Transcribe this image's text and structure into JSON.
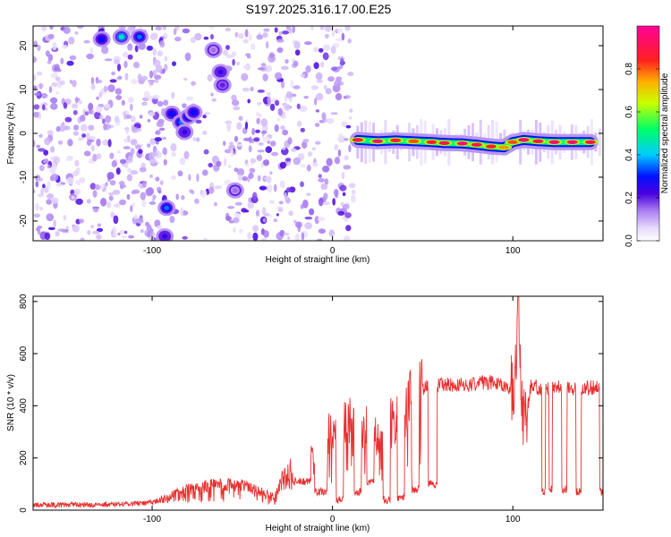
{
  "figure": {
    "title": "S197.2025.316.17.00.E25"
  },
  "colors": {
    "background": "#ffffff",
    "snr_line": "#e83030",
    "axis": "#000000",
    "colormap": [
      "#ffffff",
      "#e8dcfb",
      "#c9a8f5",
      "#8a3ff0",
      "#4a00e0",
      "#0000ff",
      "#00ccff",
      "#00ff80",
      "#ffff00",
      "#ff6a00",
      "#ff0033",
      "#ff0099"
    ]
  },
  "chart_data": [
    {
      "id": "spectrogram",
      "type": "heatmap",
      "title": "S197.2025.316.17.00.E25",
      "xlabel": "Height of straight line (km)",
      "ylabel": "Frequency (Hz)",
      "xlim": [
        -166,
        150
      ],
      "ylim": [
        -24.5,
        24.5
      ],
      "xticks": [
        -100,
        0,
        100
      ],
      "yticks": [
        -20,
        -10,
        0,
        10,
        20
      ],
      "colorbar": {
        "label": "Normalized spectral amplitude",
        "range": [
          0,
          1
        ],
        "ticks": [
          0.0,
          0.2,
          0.4,
          0.6,
          0.8
        ]
      },
      "noise_segments": [
        {
          "x0": -166,
          "x1": -92,
          "density": 0.9
        },
        {
          "x0": -89,
          "x1": -62,
          "density": 0.35
        },
        {
          "x0": -60,
          "x1": 12,
          "density": 0.75
        }
      ],
      "blobs": [
        {
          "x": -128,
          "y": 21.5,
          "amp": 0.3
        },
        {
          "x": -117,
          "y": 22.0,
          "amp": 0.45
        },
        {
          "x": -107,
          "y": 22.0,
          "amp": 0.35
        },
        {
          "x": -89,
          "y": 4.5,
          "amp": 0.3
        },
        {
          "x": -84,
          "y": 2.5,
          "amp": 0.35
        },
        {
          "x": -80,
          "y": 3.8,
          "amp": 0.3
        },
        {
          "x": -77,
          "y": 4.8,
          "amp": 0.3
        },
        {
          "x": -82,
          "y": 0.3,
          "amp": 0.25
        },
        {
          "x": -92,
          "y": -17.0,
          "amp": 0.35
        },
        {
          "x": -93,
          "y": -23.5,
          "amp": 0.25
        },
        {
          "x": -62,
          "y": 14.0,
          "amp": 0.25
        },
        {
          "x": -61,
          "y": 11.0,
          "amp": 0.2
        },
        {
          "x": -54,
          "y": -13.0,
          "amp": 0.15
        },
        {
          "x": -66,
          "y": 19.0,
          "amp": 0.15
        }
      ],
      "ridge": [
        {
          "x": 14,
          "y": -1.5,
          "amp": 0.95
        },
        {
          "x": 25,
          "y": -1.8,
          "amp": 1.0
        },
        {
          "x": 35,
          "y": -1.6,
          "amp": 0.9
        },
        {
          "x": 45,
          "y": -1.8,
          "amp": 0.85
        },
        {
          "x": 55,
          "y": -2.0,
          "amp": 0.9
        },
        {
          "x": 62,
          "y": -2.2,
          "amp": 0.95
        },
        {
          "x": 72,
          "y": -2.3,
          "amp": 1.0
        },
        {
          "x": 80,
          "y": -2.6,
          "amp": 0.95
        },
        {
          "x": 88,
          "y": -3.0,
          "amp": 0.9
        },
        {
          "x": 95,
          "y": -3.2,
          "amp": 0.8
        },
        {
          "x": 100,
          "y": -2.0,
          "amp": 0.85
        },
        {
          "x": 106,
          "y": -1.5,
          "amp": 1.0
        },
        {
          "x": 114,
          "y": -1.8,
          "amp": 0.95
        },
        {
          "x": 123,
          "y": -2.0,
          "amp": 1.0
        },
        {
          "x": 133,
          "y": -2.0,
          "amp": 1.0
        },
        {
          "x": 143,
          "y": -2.0,
          "amp": 0.95
        }
      ]
    },
    {
      "id": "snr",
      "type": "line",
      "xlabel": "Height of straight line (km)",
      "ylabel": "SNR (10 * v/v)",
      "xlim": [
        -166,
        150
      ],
      "ylim": [
        0,
        820
      ],
      "xticks": [
        -100,
        0,
        100
      ],
      "yticks": [
        0,
        200,
        400,
        600,
        800
      ],
      "series": [
        {
          "name": "SNR",
          "x": [
            -166,
            -150,
            -130,
            -110,
            -100,
            -92,
            -88,
            -84,
            -80,
            -76,
            -72,
            -68,
            -64,
            -60,
            -56,
            -52,
            -48,
            -44,
            -40,
            -36,
            -32,
            -28,
            -24,
            -20,
            -16,
            -12,
            -8,
            -4,
            0,
            4,
            8,
            12,
            16,
            20,
            24,
            28,
            32,
            36,
            40,
            44,
            48,
            52,
            56,
            60,
            64,
            70,
            76,
            82,
            88,
            94,
            98,
            100,
            102,
            103,
            104,
            105,
            106,
            108,
            110,
            114,
            118,
            122,
            126,
            130,
            134,
            138,
            142,
            146,
            150
          ],
          "y": [
            20,
            20,
            20,
            25,
            30,
            45,
            60,
            70,
            80,
            85,
            90,
            95,
            100,
            100,
            95,
            95,
            90,
            80,
            70,
            60,
            55,
            120,
            150,
            180,
            190,
            220,
            260,
            280,
            300,
            300,
            340,
            350,
            300,
            330,
            290,
            300,
            340,
            350,
            380,
            440,
            460,
            470,
            480,
            480,
            480,
            480,
            480,
            490,
            490,
            480,
            470,
            480,
            560,
            700,
            600,
            420,
            350,
            380,
            480,
            470,
            460,
            470,
            470,
            470,
            465,
            470,
            470,
            470,
            470
          ]
        }
      ],
      "dropouts": [
        [
          -22,
          -12,
          110
        ],
        [
          -10,
          -3,
          70
        ],
        [
          2,
          6,
          40
        ],
        [
          12,
          16,
          70
        ],
        [
          19,
          23,
          110
        ],
        [
          28,
          32,
          40
        ],
        [
          36,
          40,
          50
        ],
        [
          44,
          48,
          80
        ],
        [
          53,
          58,
          100
        ],
        [
          116,
          118,
          70
        ],
        [
          120,
          122,
          80
        ],
        [
          127,
          130,
          80
        ],
        [
          135,
          138,
          70
        ],
        [
          148,
          150,
          70
        ]
      ]
    }
  ]
}
